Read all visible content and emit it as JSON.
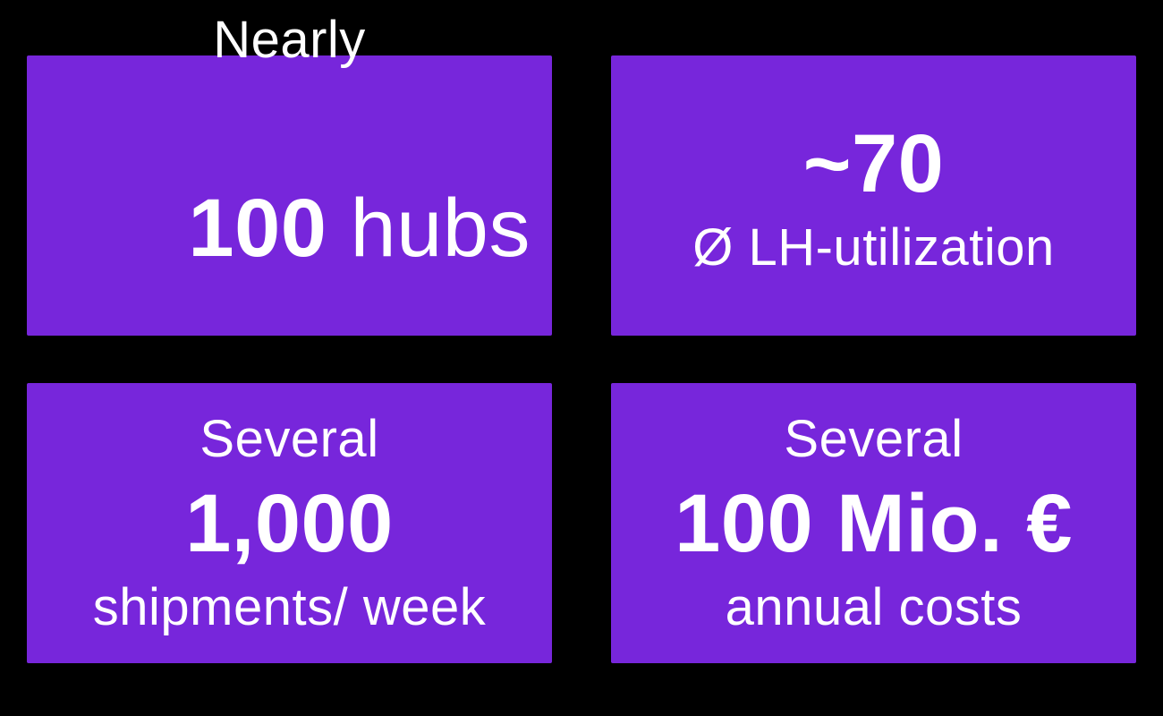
{
  "theme": {
    "background": "#000000",
    "card_color": "#7726DB",
    "text_color": "#FFFFFF"
  },
  "cards": {
    "hubs": {
      "prefix": "Nearly",
      "value": "100",
      "unit": " hubs"
    },
    "utilization": {
      "value": "~70",
      "label": "Ø LH-utilization"
    },
    "shipments": {
      "prefix": "Several",
      "value": "1,000",
      "label": "shipments/ week"
    },
    "costs": {
      "prefix": "Several",
      "value": "100 Mio. €",
      "label": "annual costs"
    }
  }
}
